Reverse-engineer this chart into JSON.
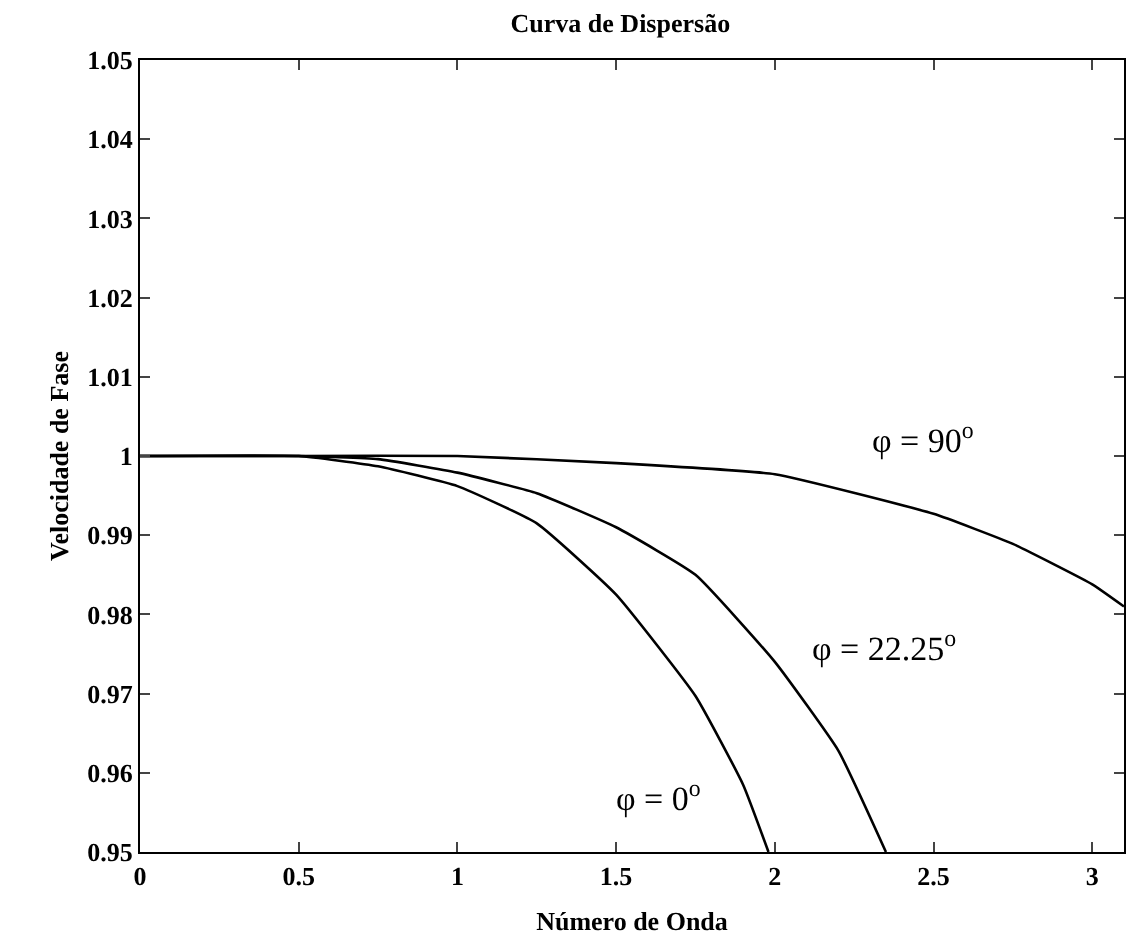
{
  "chart_data": {
    "type": "line",
    "title": "Curva de Dispersão",
    "xlabel": "Número de Onda",
    "ylabel": "Velocidade de Fase",
    "xlim": [
      0,
      3.1
    ],
    "ylim": [
      0.95,
      1.05
    ],
    "xticks": [
      0,
      0.5,
      1,
      1.5,
      2,
      2.5,
      3
    ],
    "yticks": [
      0.95,
      0.96,
      0.97,
      0.98,
      0.99,
      1,
      1.01,
      1.02,
      1.03,
      1.04,
      1.05
    ],
    "grid": false,
    "legend": false,
    "marker": "none",
    "line_style": "solid",
    "series": [
      {
        "name": "φ = 0$^{o}$",
        "color": "#000000",
        "x": [
          0,
          0.5,
          0.75,
          1,
          1.25,
          1.5,
          1.75,
          1.9,
          1.98
        ],
        "values": [
          1,
          1,
          0.9987,
          0.9962,
          0.9915,
          0.9825,
          0.9697,
          0.9585,
          0.95
        ]
      },
      {
        "name": "φ = 22.25$^{o}$",
        "color": "#000000",
        "x": [
          0,
          0.5,
          0.75,
          1,
          1.25,
          1.5,
          1.75,
          2,
          2.2,
          2.35
        ],
        "values": [
          1,
          1,
          0.9996,
          0.9979,
          0.9953,
          0.991,
          0.985,
          0.974,
          0.9628,
          0.95
        ]
      },
      {
        "name": "φ = 90$^{o}$",
        "color": "#000000",
        "x": [
          0,
          0.5,
          1,
          1.5,
          2,
          2.5,
          2.75,
          3,
          3.1
        ],
        "values": [
          1,
          1,
          1,
          0.9991,
          0.9977,
          0.9927,
          0.9889,
          0.9838,
          0.981
        ]
      }
    ]
  }
}
